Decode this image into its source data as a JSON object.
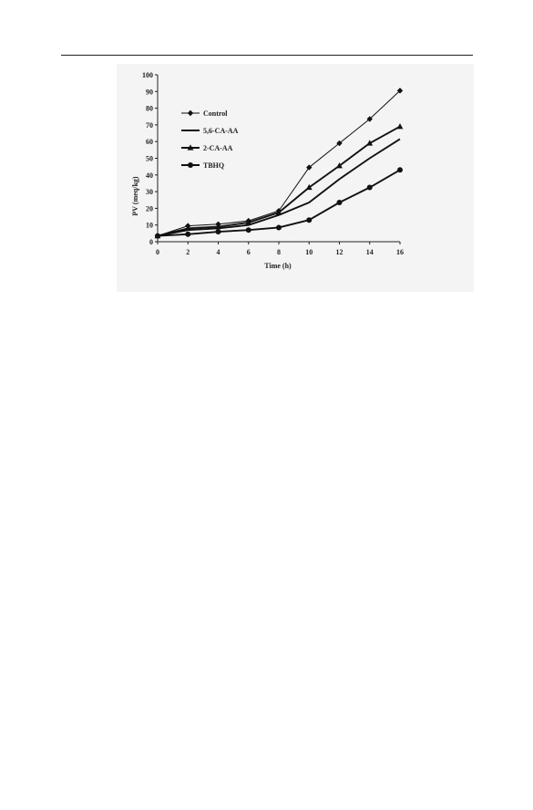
{
  "chart_data": {
    "type": "line",
    "xlabel": "Time (h)",
    "ylabel": "PV (meq/kg)",
    "x": [
      0,
      2,
      4,
      6,
      8,
      10,
      12,
      14,
      16
    ],
    "xlim": [
      0,
      16
    ],
    "ylim": [
      0,
      100
    ],
    "x_ticks": [
      "0",
      "2",
      "4",
      "6",
      "8",
      "10",
      "12",
      "14",
      "16"
    ],
    "y_ticks": [
      "0",
      "10",
      "20",
      "30",
      "40",
      "50",
      "60",
      "70",
      "80",
      "90",
      "100"
    ],
    "grid": false,
    "legend_position": "top-left",
    "series": [
      {
        "name": "Control",
        "marker": "diamond",
        "line_width": "thin",
        "values": [
          3.5,
          9.5,
          10.5,
          12.5,
          18.5,
          44.5,
          59,
          73.5,
          90.5
        ]
      },
      {
        "name": "5,6-CA-AA",
        "marker": "none",
        "line_width": "thick",
        "values": [
          3.5,
          7,
          8,
          10,
          16,
          23.5,
          37.5,
          50,
          61.5
        ]
      },
      {
        "name": "2-CA-AA",
        "marker": "triangle",
        "line_width": "thick",
        "values": [
          3.5,
          8,
          9,
          11.5,
          17.5,
          32.5,
          45.5,
          59,
          69
        ]
      },
      {
        "name": "TBHQ",
        "marker": "circle",
        "line_width": "thick",
        "values": [
          3.5,
          4.5,
          6,
          7,
          8.5,
          13,
          23.5,
          32.5,
          43
        ]
      }
    ]
  }
}
